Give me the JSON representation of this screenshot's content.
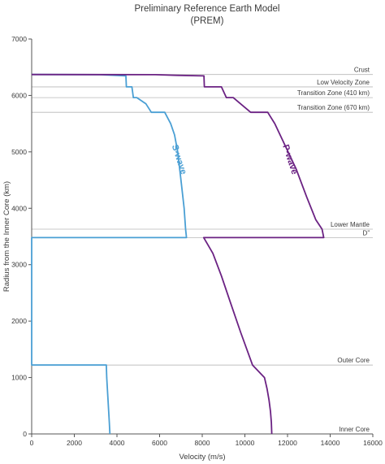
{
  "chart_data": {
    "type": "line",
    "title": "Preliminary Reference Earth Model",
    "subtitle": "(PREM)",
    "xlabel": "Velocity (m/s)",
    "ylabel": "Radius from the Inner Core (km)",
    "xlim": [
      0,
      16000
    ],
    "ylim": [
      0,
      7000
    ],
    "xticks": [
      0,
      2000,
      4000,
      6000,
      8000,
      10000,
      12000,
      14000,
      16000
    ],
    "yticks": [
      0,
      1000,
      2000,
      3000,
      4000,
      5000,
      6000,
      7000
    ],
    "boundaries": [
      {
        "label": "Crust",
        "radius": 6371
      },
      {
        "label": "Low Velocity Zone",
        "radius": 6151
      },
      {
        "label": "Transition Zone (410 km)",
        "radius": 5961
      },
      {
        "label": "Transition Zone (670 km)",
        "radius": 5701
      },
      {
        "label": "Lower Mantle",
        "radius": 3630
      },
      {
        "label": "D”",
        "radius": 3480
      },
      {
        "label": "Outer Core",
        "radius": 1221.5
      },
      {
        "label": "Inner Core",
        "radius": 0
      }
    ],
    "series": [
      {
        "name": "S-wave",
        "color": "#4a9fd4",
        "label_position": {
          "x": 6800,
          "y": 4850
        },
        "points": [
          [
            3670,
            0
          ],
          [
            3640,
            200
          ],
          [
            3610,
            400
          ],
          [
            3580,
            600
          ],
          [
            3550,
            800
          ],
          [
            3520,
            1000
          ],
          [
            3500,
            1221.5
          ],
          [
            0,
            1221.5
          ],
          [
            0,
            3480
          ],
          [
            7260,
            3480
          ],
          [
            7220,
            3630
          ],
          [
            7150,
            4000
          ],
          [
            7000,
            4500
          ],
          [
            6850,
            5000
          ],
          [
            6700,
            5300
          ],
          [
            6520,
            5500
          ],
          [
            6240,
            5701
          ],
          [
            5610,
            5701
          ],
          [
            5360,
            5850
          ],
          [
            4930,
            5961
          ],
          [
            4770,
            5961
          ],
          [
            4700,
            6151
          ],
          [
            4440,
            6151
          ],
          [
            4420,
            6346
          ],
          [
            3900,
            6356
          ],
          [
            3200,
            6368
          ],
          [
            0,
            6371
          ]
        ]
      },
      {
        "name": "P-wave",
        "color": "#6b2283",
        "label_position": {
          "x": 12000,
          "y": 4850
        },
        "points": [
          [
            11260,
            0
          ],
          [
            11240,
            200
          ],
          [
            11200,
            400
          ],
          [
            11130,
            600
          ],
          [
            11040,
            800
          ],
          [
            10920,
            1000
          ],
          [
            10360,
            1221.5
          ],
          [
            9800,
            1800
          ],
          [
            9350,
            2300
          ],
          [
            8900,
            2800
          ],
          [
            8500,
            3200
          ],
          [
            8070,
            3480
          ],
          [
            13700,
            3480
          ],
          [
            13620,
            3630
          ],
          [
            13320,
            3800
          ],
          [
            12900,
            4200
          ],
          [
            12400,
            4700
          ],
          [
            11900,
            5100
          ],
          [
            11400,
            5500
          ],
          [
            11070,
            5701
          ],
          [
            10270,
            5701
          ],
          [
            9450,
            5961
          ],
          [
            9130,
            5961
          ],
          [
            8900,
            6151
          ],
          [
            8100,
            6151
          ],
          [
            8080,
            6346
          ],
          [
            6800,
            6356
          ],
          [
            5800,
            6368
          ],
          [
            0,
            6371
          ]
        ]
      }
    ]
  }
}
